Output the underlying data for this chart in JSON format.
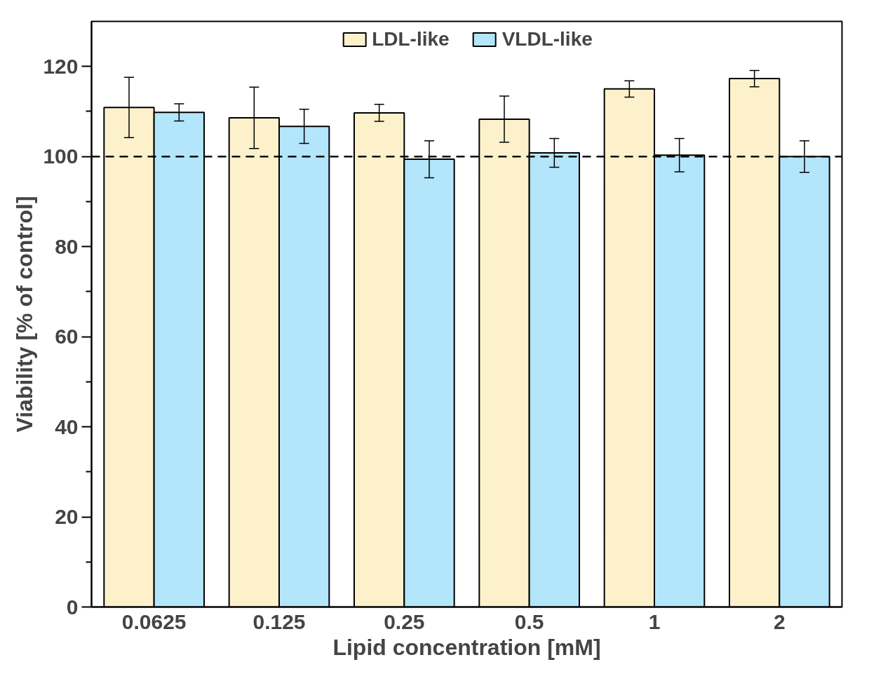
{
  "chart_data": {
    "type": "bar",
    "xlabel": "Lipid concentration [mM]",
    "ylabel": "Viability [% of control]",
    "categories": [
      "0.0625",
      "0.125",
      "0.25",
      "0.5",
      "1",
      "2"
    ],
    "series": [
      {
        "name": "LDL-like",
        "color": "#fdf1cc",
        "values": [
          110.9,
          108.6,
          109.7,
          108.3,
          115.0,
          117.3
        ],
        "errors": [
          6.7,
          6.8,
          1.9,
          5.1,
          1.8,
          1.8
        ]
      },
      {
        "name": "VLDL-like",
        "color": "#b3e5fb",
        "values": [
          109.8,
          106.7,
          99.4,
          100.8,
          100.3,
          100.0
        ],
        "errors": [
          1.9,
          3.8,
          4.1,
          3.2,
          3.7,
          3.5
        ]
      }
    ],
    "ylim": [
      0,
      130
    ],
    "yticks": [
      0,
      {
        "value": 10,
        "label": null
      },
      20,
      {
        "value": 30,
        "label": null
      },
      40,
      {
        "value": 50,
        "label": null
      },
      60,
      {
        "value": 70,
        "label": null
      },
      80,
      {
        "value": 90,
        "label": null
      },
      100,
      {
        "value": 110,
        "label": null
      },
      120
    ],
    "ref_lines": [
      {
        "axis": "y",
        "value": 100,
        "color": "#000000",
        "line_style": "dashed"
      }
    ],
    "legend": "top",
    "grid": false
  }
}
